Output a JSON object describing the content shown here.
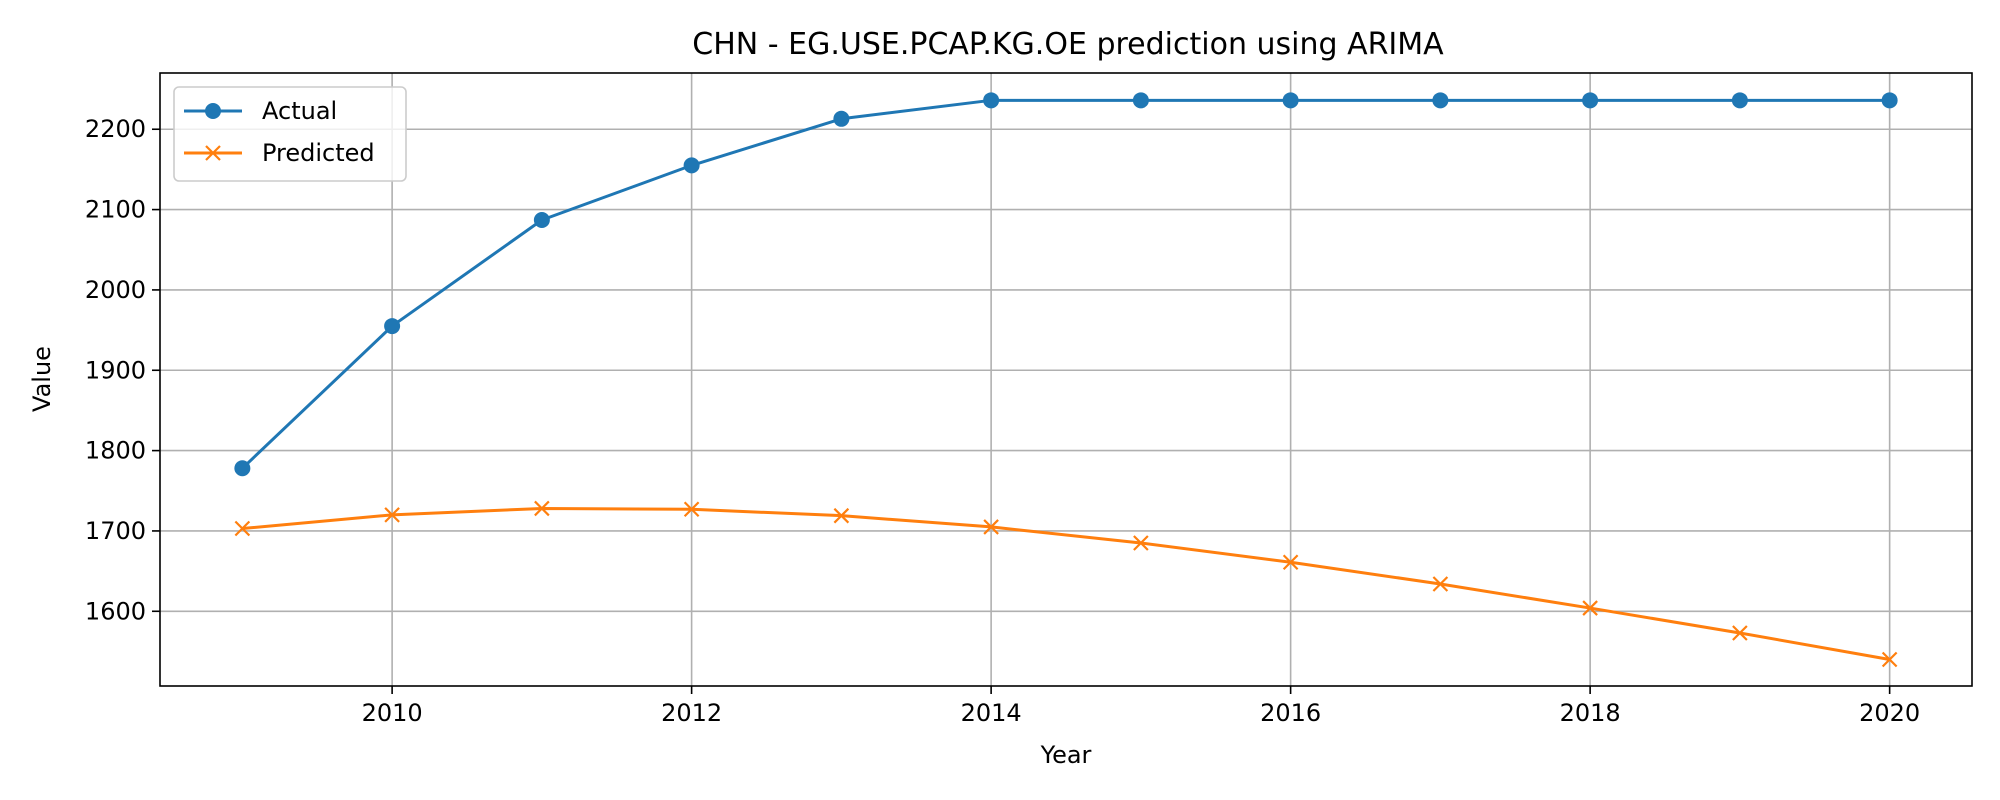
{
  "chart_data": {
    "type": "line",
    "title": "CHN - EG.USE.PCAP.KG.OE prediction using ARIMA",
    "xlabel": "Year",
    "ylabel": "Value",
    "x": [
      2009,
      2010,
      2011,
      2012,
      2013,
      2014,
      2015,
      2016,
      2017,
      2018,
      2019,
      2020
    ],
    "xlim": [
      2008.45,
      2020.55
    ],
    "ylim": [
      1507,
      2270
    ],
    "xticks": [
      2010,
      2012,
      2014,
      2016,
      2018,
      2020
    ],
    "yticks": [
      1600,
      1700,
      1800,
      1900,
      2000,
      2100,
      2200
    ],
    "grid": true,
    "legend": "upper-left",
    "series": [
      {
        "name": "Actual",
        "color": "#1f77b4",
        "marker": "circle",
        "values": [
          1778,
          1955,
          2087,
          2155,
          2213,
          2236,
          2236,
          2236,
          2236,
          2236,
          2236,
          2236
        ]
      },
      {
        "name": "Predicted",
        "color": "#ff7f0e",
        "marker": "x",
        "values": [
          1703,
          1720,
          1728,
          1727,
          1719,
          1705,
          1685,
          1661,
          1634,
          1604,
          1573,
          1540
        ]
      }
    ]
  }
}
